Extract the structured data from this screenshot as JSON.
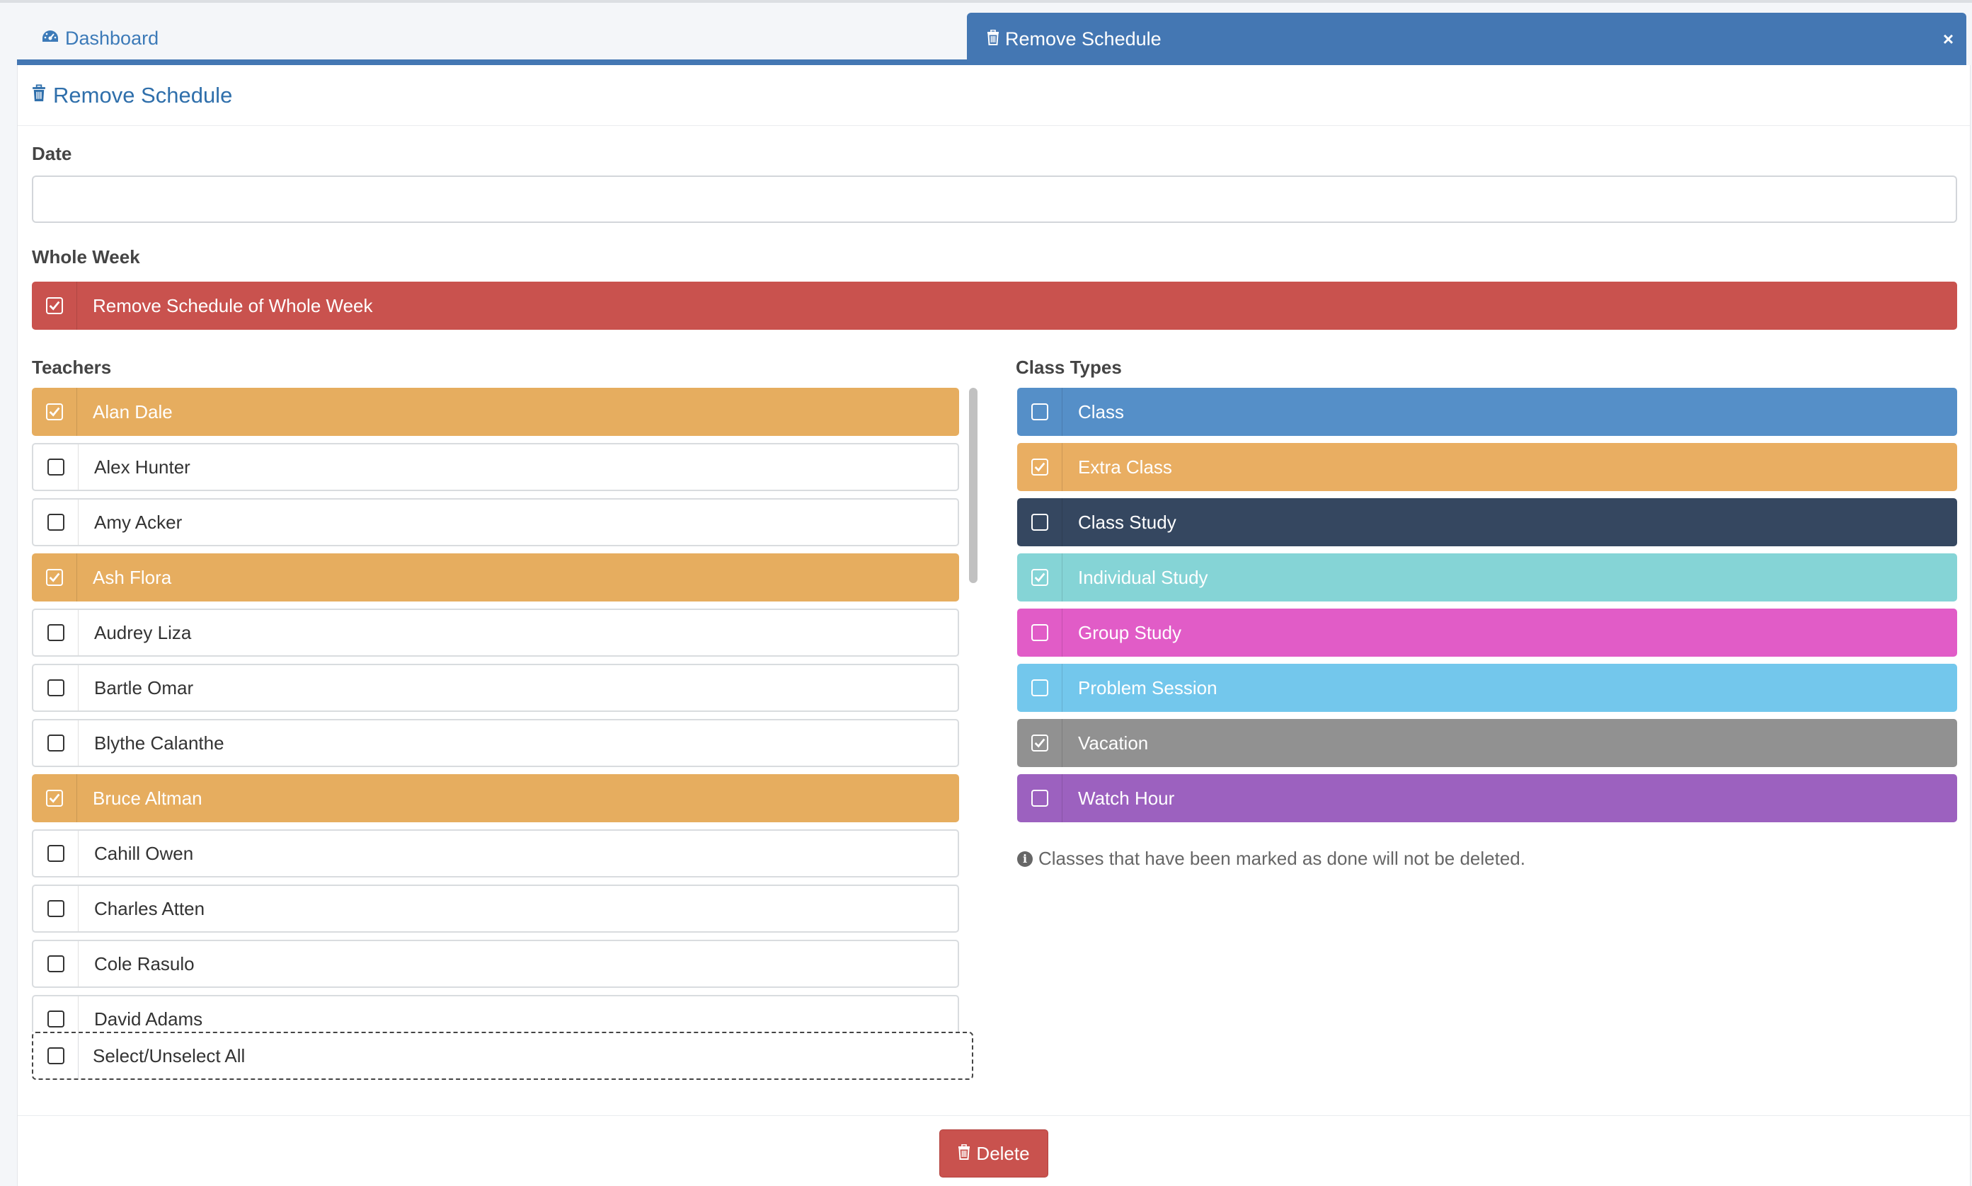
{
  "tabs": {
    "dashboard_label": "Dashboard",
    "active_label": "Remove Schedule",
    "close_symbol": "×"
  },
  "header": {
    "title": "Remove Schedule"
  },
  "date": {
    "label": "Date",
    "value": ""
  },
  "whole_week": {
    "label": "Whole Week",
    "option_label": "Remove Schedule of Whole Week",
    "checked": true,
    "color": "#c9524e"
  },
  "teachers": {
    "label": "Teachers",
    "selected_color": "#e6ad5f",
    "items": [
      {
        "name": "Alan Dale",
        "checked": true
      },
      {
        "name": "Alex Hunter",
        "checked": false
      },
      {
        "name": "Amy Acker",
        "checked": false
      },
      {
        "name": "Ash Flora",
        "checked": true
      },
      {
        "name": "Audrey Liza",
        "checked": false
      },
      {
        "name": "Bartle Omar",
        "checked": false
      },
      {
        "name": "Blythe Calanthe",
        "checked": false
      },
      {
        "name": "Bruce Altman",
        "checked": true
      },
      {
        "name": "Cahill Owen",
        "checked": false
      },
      {
        "name": "Charles Atten",
        "checked": false
      },
      {
        "name": "Cole Rasulo",
        "checked": false
      },
      {
        "name": "David Adams",
        "checked": false
      }
    ],
    "select_all_label": "Select/Unselect All"
  },
  "class_types": {
    "label": "Class Types",
    "items": [
      {
        "name": "Class",
        "checked": false,
        "color": "#558fc8"
      },
      {
        "name": "Extra Class",
        "checked": true,
        "color": "#e9ae62"
      },
      {
        "name": "Class Study",
        "checked": false,
        "color": "#354760"
      },
      {
        "name": "Individual Study",
        "checked": true,
        "color": "#85d4d6"
      },
      {
        "name": "Group Study",
        "checked": false,
        "color": "#e15cc7"
      },
      {
        "name": "Problem Session",
        "checked": false,
        "color": "#73c7ec"
      },
      {
        "name": "Vacation",
        "checked": true,
        "color": "#919191"
      },
      {
        "name": "Watch Hour",
        "checked": false,
        "color": "#9c61bf"
      }
    ]
  },
  "note": "Classes that have been marked as done will not be deleted.",
  "delete_label": "Delete",
  "icons": {
    "dashboard": "dashboard-icon",
    "trash": "trash-icon",
    "info": "info-icon",
    "check": "check-icon"
  }
}
